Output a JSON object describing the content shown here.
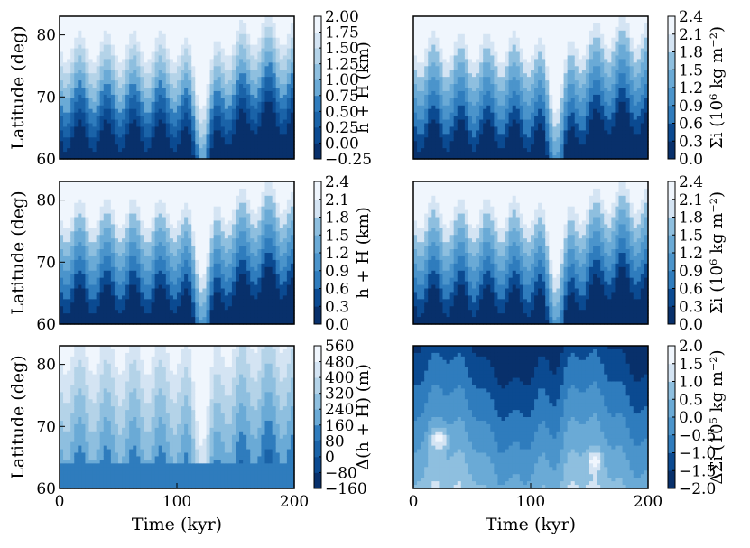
{
  "chart_data": [
    {
      "type": "heatmap",
      "panel": "top-left",
      "quantity": "elevation",
      "title": "",
      "xlabel": "",
      "ylabel": "Latitude (deg)",
      "xlim": [
        0,
        200
      ],
      "ylim": [
        60,
        83
      ],
      "xticks": [],
      "yticks": [
        60,
        70,
        80
      ],
      "colorbar_label": "h + H (km)",
      "colorbar_ticks": [
        "2.00",
        "1.75",
        "1.50",
        "1.25",
        "1.00",
        "0.75",
        "0.50",
        "0.25",
        "0.00",
        "−0.25"
      ],
      "levels": 9
    },
    {
      "type": "heatmap",
      "panel": "top-right",
      "quantity": "surface-density",
      "title": "",
      "xlabel": "",
      "ylabel": "",
      "xlim": [
        0,
        200
      ],
      "ylim": [
        60,
        83
      ],
      "xticks": [],
      "yticks": [],
      "colorbar_label": "Σi (10⁶ kg m⁻²)",
      "colorbar_ticks": [
        "2.4",
        "2.1",
        "1.8",
        "1.5",
        "1.2",
        "0.9",
        "0.6",
        "0.3",
        "0.0"
      ],
      "levels": 8
    },
    {
      "type": "heatmap",
      "panel": "middle-left",
      "quantity": "elevation",
      "title": "",
      "xlabel": "",
      "ylabel": "Latitude (deg)",
      "xlim": [
        0,
        200
      ],
      "ylim": [
        60,
        83
      ],
      "xticks": [],
      "yticks": [
        60,
        70,
        80
      ],
      "colorbar_label": "h + H (km)",
      "colorbar_ticks": [
        "2.4",
        "2.1",
        "1.8",
        "1.5",
        "1.2",
        "0.9",
        "0.6",
        "0.3",
        "0.0"
      ],
      "levels": 8
    },
    {
      "type": "heatmap",
      "panel": "middle-right",
      "quantity": "surface-density",
      "title": "",
      "xlabel": "",
      "ylabel": "",
      "xlim": [
        0,
        200
      ],
      "ylim": [
        60,
        83
      ],
      "xticks": [],
      "yticks": [],
      "colorbar_label": "Σi (10⁶ kg m⁻²)",
      "colorbar_ticks": [
        "2.4",
        "2.1",
        "1.8",
        "1.5",
        "1.2",
        "0.9",
        "0.6",
        "0.3",
        "0.0"
      ],
      "levels": 8
    },
    {
      "type": "heatmap",
      "panel": "bottom-left",
      "quantity": "elevation-difference",
      "title": "",
      "xlabel": "Time (kyr)",
      "ylabel": "Latitude (deg)",
      "xlim": [
        0,
        200
      ],
      "ylim": [
        60,
        83
      ],
      "xticks": [
        0,
        100,
        200
      ],
      "yticks": [
        60,
        70,
        80
      ],
      "colorbar_label": "Δ(h + H) (m)",
      "colorbar_ticks": [
        "560",
        "480",
        "400",
        "320",
        "240",
        "160",
        "80",
        "0",
        "−80",
        "−160"
      ],
      "levels": 9
    },
    {
      "type": "heatmap",
      "panel": "bottom-right",
      "quantity": "density-difference",
      "title": "",
      "xlabel": "Time (kyr)",
      "ylabel": "",
      "xlim": [
        0,
        200
      ],
      "ylim": [
        60,
        83
      ],
      "xticks": [
        0,
        100,
        200
      ],
      "yticks": [],
      "colorbar_label": "ΔΣi (10⁵ kg m⁻²)",
      "colorbar_ticks": [
        "2.0",
        "1.5",
        "1.0",
        "0.5",
        "0.0",
        "−0.5",
        "−1.0",
        "−1.5",
        "−2.0"
      ],
      "levels": 8
    }
  ],
  "colors": {
    "dark": "#08306b",
    "light": "#f0f6fd",
    "palette": [
      "#08306b",
      "#0b4a91",
      "#1a63a8",
      "#2f7cbd",
      "#4b94cb",
      "#6aaad6",
      "#8ebfdf",
      "#b4d3e8",
      "#d4e4f3",
      "#f0f6fd"
    ]
  }
}
